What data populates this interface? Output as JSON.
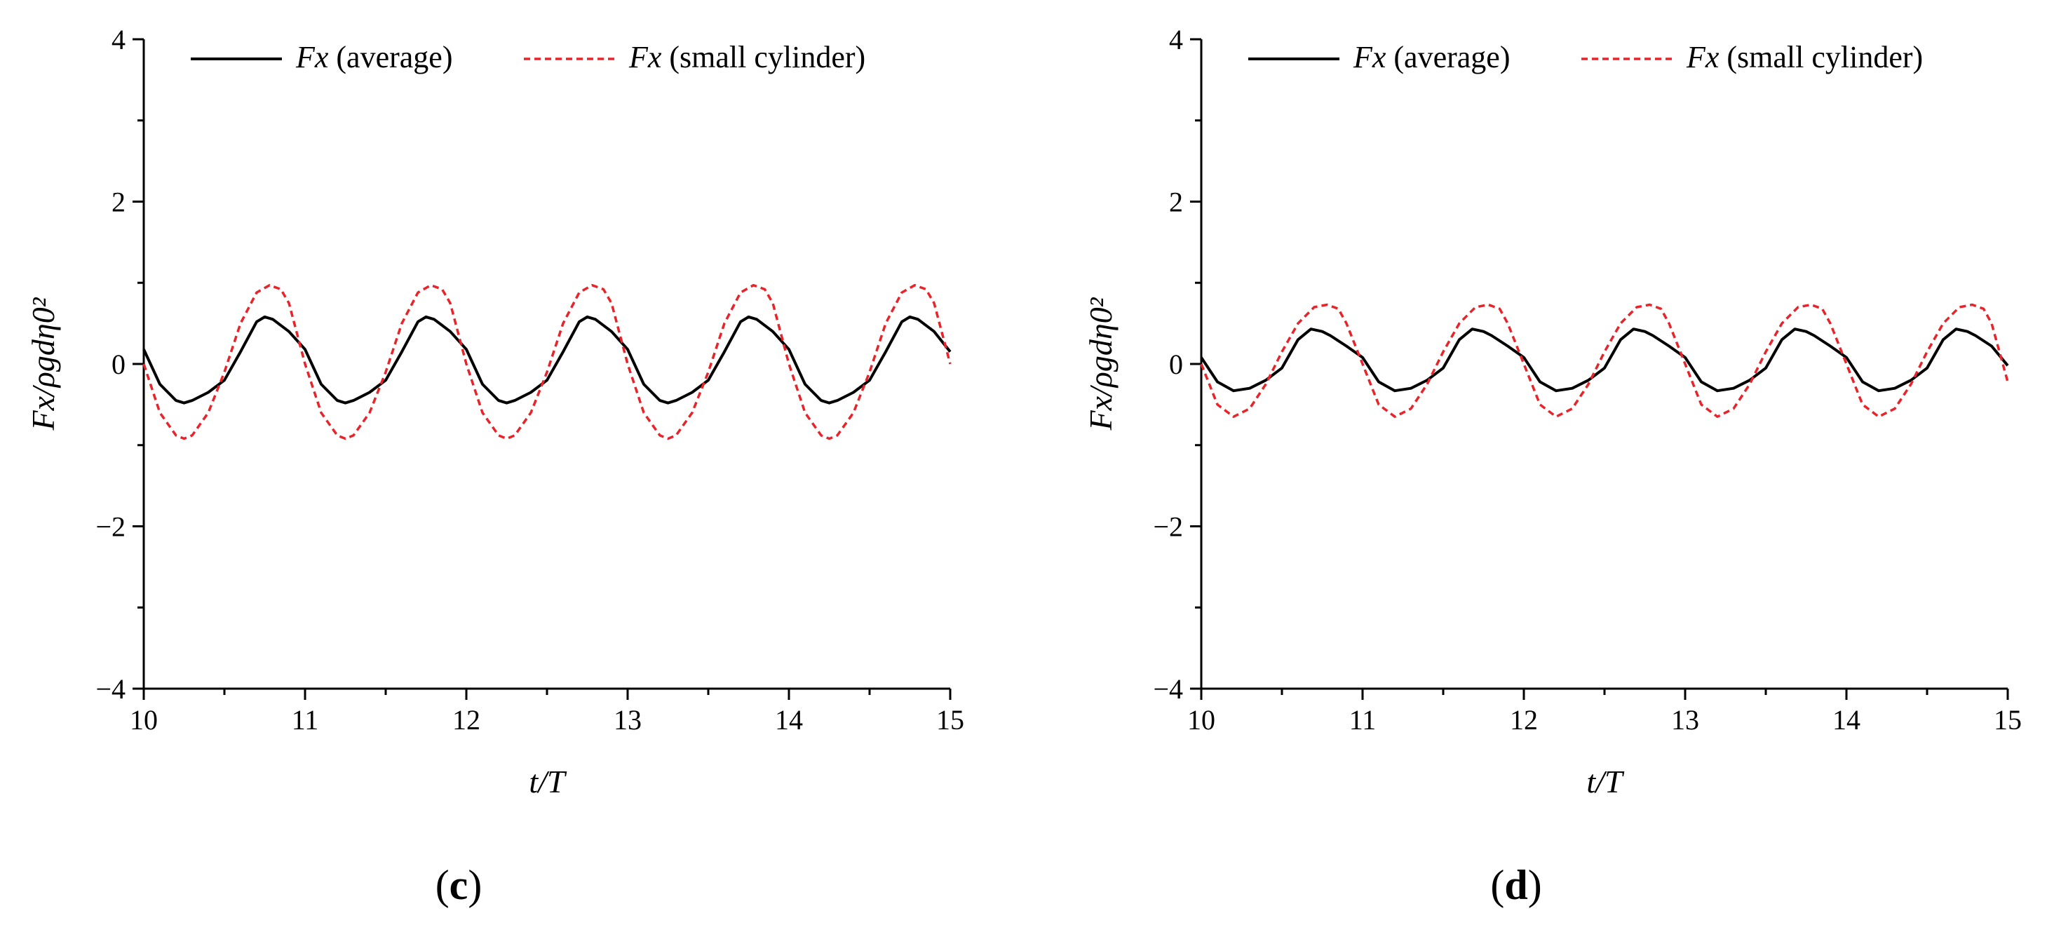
{
  "figure": {
    "colors": {
      "average": "#000000",
      "small_cylinder": "#e8232a",
      "axis": "#000000"
    }
  },
  "chart_data": [
    {
      "type": "line",
      "panel_label": "(c)",
      "panel_letter": "c",
      "xlabel": "t/T",
      "ylabel": "Fx/ρgdη0²",
      "xlim": [
        10,
        15
      ],
      "ylim": [
        -4,
        4
      ],
      "x_ticks": [
        "10",
        "11",
        "12",
        "13",
        "14",
        "15"
      ],
      "y_ticks": [
        "−4",
        "−2",
        "0",
        "2",
        "4"
      ],
      "legend_position": "top",
      "series": [
        {
          "name": "Fx (average)",
          "legend_symbol": "Fx",
          "legend_text": "(average)",
          "style": "solid",
          "color": "#000000",
          "x": [
            10.0,
            10.1,
            10.2,
            10.25,
            10.3,
            10.4,
            10.5,
            10.6,
            10.7,
            10.75,
            10.8,
            10.9,
            11.0,
            11.1,
            11.2,
            11.25,
            11.3,
            11.4,
            11.5,
            11.6,
            11.7,
            11.75,
            11.8,
            11.9,
            12.0,
            12.1,
            12.2,
            12.25,
            12.3,
            12.4,
            12.5,
            12.6,
            12.7,
            12.75,
            12.8,
            12.9,
            13.0,
            13.1,
            13.2,
            13.25,
            13.3,
            13.4,
            13.5,
            13.6,
            13.7,
            13.75,
            13.8,
            13.9,
            14.0,
            14.1,
            14.2,
            14.25,
            14.3,
            14.4,
            14.5,
            14.6,
            14.7,
            14.75,
            14.8,
            14.9,
            15.0
          ],
          "y": [
            0.18,
            -0.25,
            -0.45,
            -0.48,
            -0.45,
            -0.35,
            -0.2,
            0.15,
            0.52,
            0.58,
            0.55,
            0.4,
            0.18,
            -0.25,
            -0.45,
            -0.48,
            -0.45,
            -0.35,
            -0.2,
            0.15,
            0.52,
            0.58,
            0.55,
            0.4,
            0.18,
            -0.25,
            -0.45,
            -0.48,
            -0.45,
            -0.35,
            -0.2,
            0.15,
            0.52,
            0.58,
            0.55,
            0.4,
            0.18,
            -0.25,
            -0.45,
            -0.48,
            -0.45,
            -0.35,
            -0.2,
            0.15,
            0.52,
            0.58,
            0.55,
            0.4,
            0.18,
            -0.25,
            -0.45,
            -0.48,
            -0.45,
            -0.35,
            -0.2,
            0.15,
            0.52,
            0.58,
            0.55,
            0.4,
            0.15
          ]
        },
        {
          "name": "Fx (small cylinder)",
          "legend_symbol": "Fx",
          "legend_text": "(small cylinder)",
          "style": "dashed",
          "color": "#e8232a",
          "x": [
            10.0,
            10.1,
            10.2,
            10.25,
            10.3,
            10.4,
            10.5,
            10.6,
            10.7,
            10.78,
            10.85,
            10.9,
            11.0,
            11.1,
            11.2,
            11.25,
            11.3,
            11.4,
            11.5,
            11.6,
            11.7,
            11.78,
            11.85,
            11.9,
            12.0,
            12.1,
            12.2,
            12.25,
            12.3,
            12.4,
            12.5,
            12.6,
            12.7,
            12.78,
            12.85,
            12.9,
            13.0,
            13.1,
            13.2,
            13.25,
            13.3,
            13.4,
            13.5,
            13.6,
            13.7,
            13.78,
            13.85,
            13.9,
            14.0,
            14.1,
            14.2,
            14.25,
            14.3,
            14.4,
            14.5,
            14.6,
            14.7,
            14.78,
            14.85,
            14.9,
            15.0
          ],
          "y": [
            0.0,
            -0.6,
            -0.88,
            -0.92,
            -0.88,
            -0.6,
            -0.1,
            0.5,
            0.88,
            0.97,
            0.92,
            0.75,
            0.0,
            -0.6,
            -0.88,
            -0.92,
            -0.88,
            -0.6,
            -0.1,
            0.5,
            0.88,
            0.97,
            0.92,
            0.75,
            0.0,
            -0.6,
            -0.88,
            -0.92,
            -0.88,
            -0.6,
            -0.1,
            0.5,
            0.88,
            0.97,
            0.92,
            0.75,
            0.0,
            -0.6,
            -0.88,
            -0.92,
            -0.88,
            -0.6,
            -0.1,
            0.5,
            0.88,
            0.97,
            0.92,
            0.75,
            0.0,
            -0.6,
            -0.88,
            -0.92,
            -0.88,
            -0.6,
            -0.1,
            0.5,
            0.88,
            0.97,
            0.92,
            0.75,
            0.0
          ]
        }
      ]
    },
    {
      "type": "line",
      "panel_label": "(d)",
      "panel_letter": "d",
      "xlabel": "t/T",
      "ylabel": "Fx/ρgdη0²",
      "xlim": [
        10,
        15
      ],
      "ylim": [
        -4,
        4
      ],
      "x_ticks": [
        "10",
        "11",
        "12",
        "13",
        "14",
        "15"
      ],
      "y_ticks": [
        "−4",
        "−2",
        "0",
        "2",
        "4"
      ],
      "legend_position": "top",
      "series": [
        {
          "name": "Fx (average)",
          "legend_symbol": "Fx",
          "legend_text": "(average)",
          "style": "solid",
          "color": "#000000",
          "x": [
            10.0,
            10.1,
            10.2,
            10.3,
            10.4,
            10.5,
            10.6,
            10.68,
            10.75,
            10.8,
            10.9,
            11.0,
            11.1,
            11.2,
            11.3,
            11.4,
            11.5,
            11.6,
            11.68,
            11.75,
            11.8,
            11.9,
            12.0,
            12.1,
            12.2,
            12.3,
            12.4,
            12.5,
            12.6,
            12.68,
            12.75,
            12.8,
            12.9,
            13.0,
            13.1,
            13.2,
            13.3,
            13.4,
            13.5,
            13.6,
            13.68,
            13.75,
            13.8,
            13.9,
            14.0,
            14.1,
            14.2,
            14.3,
            14.4,
            14.5,
            14.6,
            14.68,
            14.75,
            14.8,
            14.9,
            15.0
          ],
          "y": [
            0.08,
            -0.22,
            -0.33,
            -0.3,
            -0.2,
            -0.05,
            0.3,
            0.43,
            0.4,
            0.35,
            0.22,
            0.08,
            -0.22,
            -0.33,
            -0.3,
            -0.2,
            -0.05,
            0.3,
            0.43,
            0.4,
            0.35,
            0.22,
            0.08,
            -0.22,
            -0.33,
            -0.3,
            -0.2,
            -0.05,
            0.3,
            0.43,
            0.4,
            0.35,
            0.22,
            0.08,
            -0.22,
            -0.33,
            -0.3,
            -0.2,
            -0.05,
            0.3,
            0.43,
            0.4,
            0.35,
            0.22,
            0.08,
            -0.22,
            -0.33,
            -0.3,
            -0.2,
            -0.05,
            0.3,
            0.43,
            0.4,
            0.35,
            0.22,
            -0.02
          ]
        },
        {
          "name": "Fx (small cylinder)",
          "legend_symbol": "Fx",
          "legend_text": "(small cylinder)",
          "style": "dashed",
          "color": "#e8232a",
          "x": [
            10.0,
            10.1,
            10.2,
            10.3,
            10.4,
            10.5,
            10.6,
            10.7,
            10.78,
            10.85,
            10.9,
            11.0,
            11.1,
            11.2,
            11.3,
            11.4,
            11.5,
            11.6,
            11.7,
            11.78,
            11.85,
            11.9,
            12.0,
            12.1,
            12.2,
            12.3,
            12.4,
            12.5,
            12.6,
            12.7,
            12.78,
            12.85,
            12.9,
            13.0,
            13.1,
            13.2,
            13.3,
            13.4,
            13.5,
            13.6,
            13.7,
            13.78,
            13.85,
            13.9,
            14.0,
            14.1,
            14.2,
            14.3,
            14.4,
            14.5,
            14.6,
            14.7,
            14.78,
            14.85,
            14.9,
            15.0
          ],
          "y": [
            0.0,
            -0.5,
            -0.65,
            -0.55,
            -0.25,
            0.15,
            0.5,
            0.7,
            0.73,
            0.68,
            0.5,
            0.0,
            -0.5,
            -0.65,
            -0.55,
            -0.25,
            0.15,
            0.5,
            0.7,
            0.73,
            0.68,
            0.5,
            0.0,
            -0.5,
            -0.65,
            -0.55,
            -0.25,
            0.15,
            0.5,
            0.7,
            0.73,
            0.68,
            0.5,
            0.0,
            -0.5,
            -0.65,
            -0.55,
            -0.25,
            0.15,
            0.5,
            0.7,
            0.73,
            0.68,
            0.5,
            0.0,
            -0.5,
            -0.65,
            -0.55,
            -0.25,
            0.15,
            0.5,
            0.7,
            0.73,
            0.68,
            0.5,
            -0.22
          ]
        }
      ]
    }
  ]
}
